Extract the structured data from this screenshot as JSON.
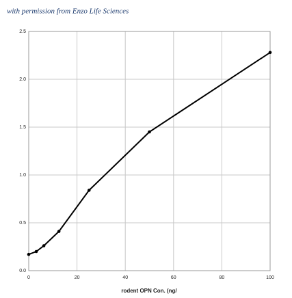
{
  "chart_data": {
    "type": "line",
    "annotation": "with permission from Enzo Life Sciences",
    "x_label": "rodent OPN Con. (ng/",
    "x": [
      0,
      3.125,
      6.25,
      12.5,
      25,
      50,
      100
    ],
    "series": [
      {
        "name": null,
        "color": "#000000",
        "values": [
          0.17,
          0.2,
          0.26,
          0.41,
          0.84,
          1.45,
          2.28
        ]
      }
    ],
    "xlim": [
      0,
      100
    ],
    "xticks": [
      0,
      20,
      40,
      60,
      80,
      100
    ],
    "ylim": [
      0,
      2.5
    ],
    "yticks": [
      {
        "value": 0,
        "label": "0.0"
      },
      0.5,
      {
        "value": 1,
        "label": "1.0"
      },
      1.5,
      {
        "value": 2,
        "label": "2.0"
      },
      2.5
    ],
    "grid": true
  }
}
